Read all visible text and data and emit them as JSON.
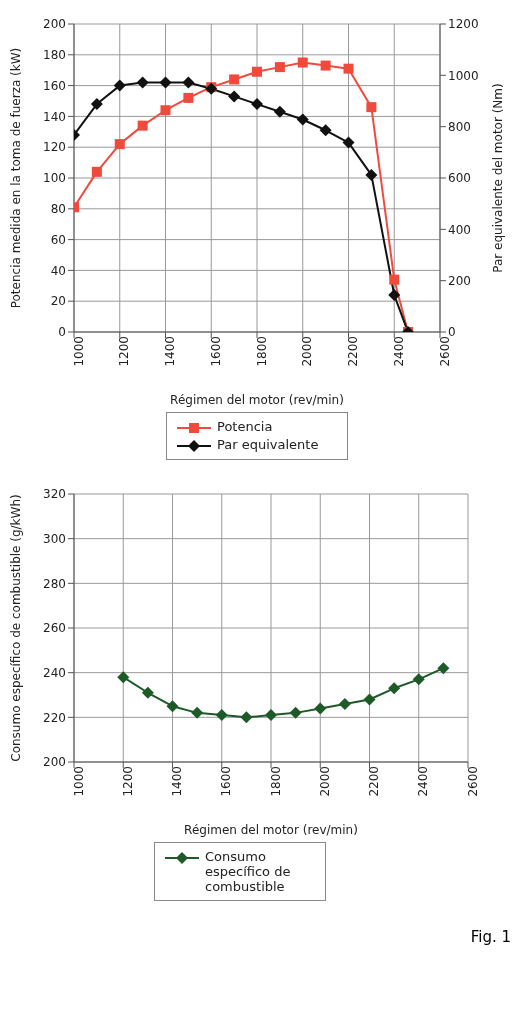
{
  "chart_data": [
    {
      "type": "line",
      "xlabel": "Régimen del motor (rev/min)",
      "ylabel": "Potencia medida en la toma de fuerza (kW)",
      "y2label": "Par equivalente del motor (Nm)",
      "x": [
        1000,
        1100,
        1200,
        1300,
        1400,
        1500,
        1600,
        1700,
        1800,
        1900,
        2000,
        2100,
        2200,
        2300,
        2400,
        2460
      ],
      "series": [
        {
          "name": "Potencia",
          "color": "#f04a3c",
          "marker": "square",
          "values": [
            81,
            104,
            122,
            134,
            144,
            152,
            159,
            164,
            169,
            172,
            175,
            173,
            171,
            146,
            34,
            0
          ]
        },
        {
          "name": "Par equivalente",
          "color": "#111111",
          "marker": "diamond",
          "axis": "y2",
          "values": [
            768,
            888,
            960,
            972,
            972,
            972,
            948,
            918,
            888,
            858,
            828,
            786,
            738,
            612,
            144,
            0
          ]
        }
      ],
      "xlim": [
        1000,
        2600
      ],
      "xticks": [
        1000,
        1200,
        1400,
        1600,
        1800,
        2000,
        2200,
        2400,
        2600
      ],
      "ylim": [
        0,
        200
      ],
      "yticks": [
        0,
        20,
        40,
        60,
        80,
        100,
        120,
        140,
        160,
        180,
        200
      ],
      "y2lim": [
        0,
        1200
      ],
      "y2ticks": [
        0,
        200,
        400,
        600,
        800,
        1000,
        1200
      ],
      "grid": true,
      "legend": "bottom"
    },
    {
      "type": "line",
      "xlabel": "Régimen del motor (rev/min)",
      "ylabel": "Consumo específico de combustible (g/kWh)",
      "x": [
        1200,
        1300,
        1400,
        1500,
        1600,
        1700,
        1800,
        1900,
        2000,
        2100,
        2200,
        2300,
        2400,
        2500
      ],
      "series": [
        {
          "name": "Consumo específico de combustible",
          "color": "#1e5a28",
          "marker": "diamond",
          "values": [
            238,
            231,
            225,
            222,
            221,
            220,
            221,
            222,
            224,
            226,
            228,
            233,
            237,
            242
          ]
        }
      ],
      "xlim": [
        1000,
        2600
      ],
      "xticks": [
        1000,
        1200,
        1400,
        1600,
        1800,
        2000,
        2200,
        2400,
        2600
      ],
      "ylim": [
        200,
        320
      ],
      "yticks": [
        200,
        220,
        240,
        260,
        280,
        300,
        320
      ],
      "grid": true,
      "legend": "bottom",
      "annotations": [
        "Fig. 1"
      ]
    }
  ]
}
